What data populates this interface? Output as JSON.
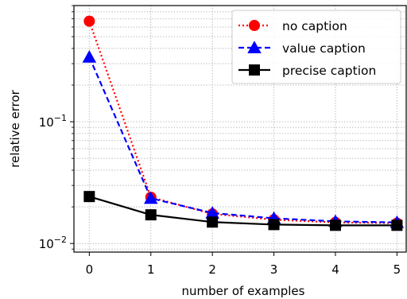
{
  "chart_data": {
    "type": "line",
    "title": "",
    "xlabel": "number of examples",
    "ylabel": "relative error",
    "x": [
      0,
      1,
      2,
      3,
      4,
      5
    ],
    "xlim": [
      -0.25,
      5.15
    ],
    "ylim": [
      0.0085,
      0.9
    ],
    "yscale": "log",
    "grid": true,
    "legend_position": "top-right",
    "series": [
      {
        "name": "no caption",
        "values": [
          0.67,
          0.024,
          0.0175,
          0.0157,
          0.0149,
          0.0147
        ],
        "color": "#ff0000",
        "marker": "circle",
        "linestyle": "dotted"
      },
      {
        "name": "value caption",
        "values": [
          0.34,
          0.0235,
          0.0178,
          0.0161,
          0.0152,
          0.0149
        ],
        "color": "#0000ff",
        "marker": "triangle",
        "linestyle": "dashed"
      },
      {
        "name": "precise caption",
        "values": [
          0.0243,
          0.0172,
          0.015,
          0.0143,
          0.0141,
          0.0141
        ],
        "color": "#000000",
        "marker": "square",
        "linestyle": "solid"
      }
    ],
    "x_ticks": [
      "0",
      "1",
      "2",
      "3",
      "4",
      "5"
    ],
    "y_ticks": [
      {
        "value": 0.01,
        "base": "10",
        "exp": "−2"
      },
      {
        "value": 0.1,
        "base": "10",
        "exp": "−1"
      }
    ]
  }
}
